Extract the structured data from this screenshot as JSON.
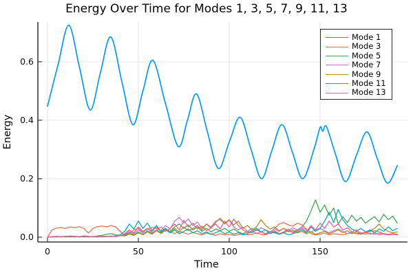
{
  "chart_data": {
    "type": "line",
    "title": "Energy Over Time for Modes 1, 3, 5, 7, 9, 11, 13",
    "xlabel": "Time",
    "ylabel": "Energy",
    "xlim": [
      -5.3,
      198.1
    ],
    "ylim": [
      -0.0165,
      0.736
    ],
    "xticks": [
      0,
      50,
      100,
      150
    ],
    "xtick_labels": [
      "0",
      "50",
      "100",
      "150"
    ],
    "yticks": [
      0,
      0.2,
      0.4,
      0.6
    ],
    "ytick_labels": [
      "0.0",
      "0.2",
      "0.4",
      "0.6"
    ],
    "grid": true,
    "grid_color": "#E6E6E6",
    "axis_color": "#36383B",
    "legend_position": "top-right",
    "x_shared": [
      0,
      2.5,
      5,
      7.5,
      10,
      12.5,
      15,
      17.5,
      20,
      22.5,
      25,
      27.5,
      30,
      32.5,
      35,
      37.5,
      40,
      42.5,
      45,
      47.5,
      50,
      52.5,
      55,
      57.5,
      60,
      62.5,
      65,
      67.5,
      70,
      72.5,
      75,
      77.5,
      80,
      82.5,
      85,
      87.5,
      90,
      92.5,
      95,
      97.5,
      100,
      102.5,
      105,
      107.5,
      110,
      112.5,
      115,
      117.5,
      120,
      122.5,
      125,
      127.5,
      130,
      132.5,
      135,
      137.5,
      140,
      142.5,
      145,
      147.5,
      150,
      152.5,
      155,
      157.5,
      160,
      162.5,
      165,
      167.5,
      170,
      172.5,
      175,
      177.5,
      180,
      182.5,
      185,
      187.5,
      190,
      192.5
    ],
    "series": [
      {
        "name": "Mode 1",
        "color": "#009AFA",
        "style": "smooth",
        "width": 1.7,
        "x": [
          0,
          5.8,
          11.7,
          17.6,
          23.5,
          29,
          34.8,
          41,
          47,
          52.5,
          58,
          65,
          72,
          77,
          82,
          88,
          94,
          100,
          106,
          112,
          117.8,
          123.4,
          129,
          134.8,
          140.5,
          146.6,
          150,
          151.5,
          153.5,
          158.4,
          164,
          170,
          175.8,
          181.4,
          187,
          192.5
        ],
        "y": [
          0.448,
          0.59,
          0.725,
          0.58,
          0.435,
          0.56,
          0.685,
          0.53,
          0.385,
          0.5,
          0.605,
          0.455,
          0.31,
          0.4,
          0.49,
          0.36,
          0.235,
          0.325,
          0.41,
          0.3,
          0.2,
          0.295,
          0.385,
          0.29,
          0.2,
          0.3,
          0.375,
          0.362,
          0.378,
          0.285,
          0.19,
          0.28,
          0.36,
          0.27,
          0.185,
          0.245
        ]
      },
      {
        "name": "Mode 3",
        "color": "#E36F47",
        "style": "linear",
        "width": 1.25,
        "x": "shared",
        "y": [
          0.0,
          0.025,
          0.031,
          0.033,
          0.03,
          0.035,
          0.033,
          0.036,
          0.03,
          0.014,
          0.03,
          0.036,
          0.038,
          0.035,
          0.04,
          0.035,
          0.02,
          0.006,
          0.012,
          0.025,
          0.03,
          0.018,
          0.028,
          0.033,
          0.03,
          0.022,
          0.025,
          0.018,
          0.012,
          0.02,
          0.015,
          0.01,
          0.016,
          0.012,
          0.008,
          0.014,
          0.01,
          0.006,
          0.012,
          0.008,
          0.01,
          0.006,
          0.008,
          0.012,
          0.008,
          0.01,
          0.014,
          0.01,
          0.008,
          0.015,
          0.03,
          0.045,
          0.05,
          0.042,
          0.038,
          0.048,
          0.042,
          0.028,
          0.012,
          0.008,
          0.01,
          0.014,
          0.008,
          0.012,
          0.01,
          0.008,
          0.012,
          0.015,
          0.012,
          0.01,
          0.015,
          0.02,
          0.022,
          0.018,
          0.012,
          0.01,
          0.012,
          0.01
        ]
      },
      {
        "name": "Mode 5",
        "color": "#3EA44E",
        "style": "linear",
        "width": 1.25,
        "x": "shared",
        "y": [
          0.0,
          0.002,
          0.003,
          0.002,
          0.003,
          0.004,
          0.003,
          0.002,
          0.004,
          0.003,
          0.002,
          0.004,
          0.006,
          0.01,
          0.012,
          0.008,
          0.005,
          0.008,
          0.015,
          0.008,
          0.018,
          0.01,
          0.022,
          0.012,
          0.025,
          0.015,
          0.028,
          0.02,
          0.035,
          0.045,
          0.03,
          0.042,
          0.025,
          0.035,
          0.02,
          0.03,
          0.018,
          0.028,
          0.022,
          0.03,
          0.02,
          0.028,
          0.018,
          0.012,
          0.02,
          0.015,
          0.025,
          0.018,
          0.012,
          0.02,
          0.015,
          0.01,
          0.015,
          0.022,
          0.018,
          0.025,
          0.035,
          0.055,
          0.09,
          0.128,
          0.085,
          0.11,
          0.075,
          0.1,
          0.045,
          0.07,
          0.05,
          0.075,
          0.055,
          0.068,
          0.048,
          0.06,
          0.07,
          0.052,
          0.078,
          0.06,
          0.072,
          0.048
        ]
      },
      {
        "name": "Mode 7",
        "color": "#C371D2",
        "style": "linear",
        "width": 1.25,
        "x": "shared",
        "y": [
          0.0,
          0.001,
          0.002,
          0.001,
          0.002,
          0.001,
          0.002,
          0.001,
          0.002,
          0.001,
          0.002,
          0.001,
          0.003,
          0.002,
          0.004,
          0.003,
          0.005,
          0.01,
          0.02,
          0.012,
          0.025,
          0.015,
          0.03,
          0.02,
          0.035,
          0.022,
          0.04,
          0.028,
          0.055,
          0.068,
          0.048,
          0.062,
          0.04,
          0.052,
          0.03,
          0.045,
          0.035,
          0.055,
          0.06,
          0.045,
          0.058,
          0.035,
          0.025,
          0.035,
          0.02,
          0.03,
          0.022,
          0.032,
          0.025,
          0.018,
          0.028,
          0.02,
          0.03,
          0.022,
          0.032,
          0.024,
          0.035,
          0.025,
          0.018,
          0.025,
          0.03,
          0.022,
          0.015,
          0.022,
          0.028,
          0.02,
          0.012,
          0.018,
          0.012,
          0.016,
          0.01,
          0.014,
          0.01,
          0.014,
          0.01,
          0.008,
          0.01,
          0.008
        ]
      },
      {
        "name": "Mode 9",
        "color": "#AC8E18",
        "style": "linear",
        "width": 1.25,
        "x": "shared",
        "y": [
          0.0,
          0.001,
          0.001,
          0.002,
          0.001,
          0.002,
          0.001,
          0.002,
          0.001,
          0.002,
          0.001,
          0.002,
          0.002,
          0.003,
          0.002,
          0.004,
          0.006,
          0.004,
          0.01,
          0.006,
          0.015,
          0.008,
          0.018,
          0.01,
          0.022,
          0.012,
          0.025,
          0.015,
          0.03,
          0.018,
          0.035,
          0.022,
          0.03,
          0.04,
          0.025,
          0.045,
          0.03,
          0.05,
          0.065,
          0.048,
          0.06,
          0.042,
          0.055,
          0.03,
          0.04,
          0.025,
          0.035,
          0.06,
          0.04,
          0.028,
          0.035,
          0.022,
          0.03,
          0.018,
          0.025,
          0.015,
          0.02,
          0.012,
          0.018,
          0.01,
          0.015,
          0.02,
          0.012,
          0.018,
          0.025,
          0.015,
          0.022,
          0.012,
          0.018,
          0.01,
          0.015,
          0.022,
          0.03,
          0.045,
          0.028,
          0.02,
          0.015,
          0.018
        ]
      },
      {
        "name": "Mode 11",
        "color": "#00AAAE",
        "style": "linear",
        "width": 1.25,
        "x": "shared",
        "y": [
          0.0,
          0.001,
          0.002,
          0.001,
          0.002,
          0.001,
          0.002,
          0.001,
          0.002,
          0.001,
          0.002,
          0.001,
          0.002,
          0.003,
          0.002,
          0.004,
          0.008,
          0.02,
          0.045,
          0.028,
          0.055,
          0.03,
          0.048,
          0.022,
          0.04,
          0.018,
          0.03,
          0.015,
          0.025,
          0.012,
          0.02,
          0.028,
          0.015,
          0.022,
          0.012,
          0.018,
          0.01,
          0.015,
          0.022,
          0.012,
          0.018,
          0.01,
          0.015,
          0.008,
          0.012,
          0.02,
          0.03,
          0.018,
          0.025,
          0.012,
          0.018,
          0.01,
          0.015,
          0.008,
          0.012,
          0.018,
          0.025,
          0.015,
          0.035,
          0.02,
          0.03,
          0.055,
          0.085,
          0.05,
          0.095,
          0.06,
          0.04,
          0.028,
          0.02,
          0.03,
          0.018,
          0.025,
          0.015,
          0.028,
          0.02,
          0.035,
          0.022,
          0.03
        ]
      },
      {
        "name": "Mode 13",
        "color": "#ED5E93",
        "style": "linear",
        "width": 1.25,
        "x": "shared",
        "y": [
          0.0,
          0.002,
          0.001,
          0.002,
          0.001,
          0.002,
          0.001,
          0.002,
          0.001,
          0.002,
          0.001,
          0.002,
          0.001,
          0.002,
          0.003,
          0.002,
          0.005,
          0.012,
          0.025,
          0.015,
          0.035,
          0.02,
          0.03,
          0.015,
          0.025,
          0.035,
          0.02,
          0.03,
          0.045,
          0.025,
          0.058,
          0.035,
          0.048,
          0.028,
          0.038,
          0.022,
          0.032,
          0.045,
          0.028,
          0.055,
          0.035,
          0.062,
          0.04,
          0.025,
          0.015,
          0.022,
          0.012,
          0.018,
          0.01,
          0.015,
          0.022,
          0.012,
          0.018,
          0.028,
          0.015,
          0.022,
          0.03,
          0.018,
          0.04,
          0.025,
          0.048,
          0.03,
          0.055,
          0.035,
          0.045,
          0.025,
          0.032,
          0.018,
          0.025,
          0.012,
          0.018,
          0.01,
          0.015,
          0.008,
          0.012,
          0.008,
          0.01,
          0.008
        ]
      }
    ]
  }
}
